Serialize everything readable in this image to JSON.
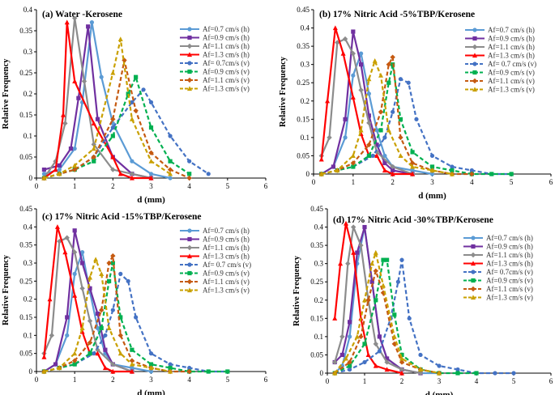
{
  "colors": {
    "s1": "#5b9bd5",
    "s2": "#7030a0",
    "s3": "#8c8c8c",
    "s4": "#ff0000",
    "s5": "#4472c4",
    "s6": "#00b050",
    "s7": "#c55a11",
    "s8": "#c9a000"
  },
  "chart_data": [
    {
      "type": "line",
      "title": "(a) Water -Kerosene",
      "xlabel": "d (mm)",
      "ylabel": "Relative Frequency",
      "xlim": [
        0,
        6
      ],
      "ylim": [
        0,
        0.4
      ],
      "xticks": [
        "0",
        "1",
        "2",
        "3",
        "4",
        "5",
        "6"
      ],
      "yticks": [
        "0",
        "0.05",
        "0.1",
        "0.15",
        "0.2",
        "0.25",
        "0.3",
        "0.35",
        "0.4"
      ],
      "legend": "top-right",
      "series": [
        {
          "name": "Af=0.7 cm/s (h)",
          "x": [
            0.2,
            0.6,
            1.0,
            1.2,
            1.45,
            1.7,
            2.0,
            2.5,
            3.0,
            3.5
          ],
          "y": [
            0.01,
            0.02,
            0.07,
            0.18,
            0.37,
            0.24,
            0.13,
            0.04,
            0.01,
            0.0
          ]
        },
        {
          "name": "Af=0.9 cm/s (h)",
          "x": [
            0.2,
            0.6,
            0.9,
            1.1,
            1.35,
            1.6,
            2.0,
            2.5,
            3.0
          ],
          "y": [
            0.02,
            0.03,
            0.07,
            0.19,
            0.36,
            0.14,
            0.05,
            0.01,
            0.0
          ]
        },
        {
          "name": "Af=1.1 cm/s (h)",
          "x": [
            0.2,
            0.5,
            0.75,
            1.0,
            1.25,
            1.5,
            2.0,
            2.5,
            3.0
          ],
          "y": [
            0.0,
            0.04,
            0.13,
            0.38,
            0.23,
            0.08,
            0.02,
            0.01,
            0.0
          ]
        },
        {
          "name": "Af=1.3 cm/s (h)",
          "x": [
            0.2,
            0.5,
            0.7,
            0.8,
            1.0,
            1.5,
            2.0,
            2.2,
            2.5,
            3.0
          ],
          "y": [
            0.0,
            0.02,
            0.15,
            0.37,
            0.23,
            0.13,
            0.05,
            0.01,
            0.0,
            0.0
          ]
        },
        {
          "name": "Af= 0.7cm/s (v)",
          "x": [
            0.2,
            0.6,
            1.0,
            1.5,
            2.0,
            2.5,
            2.8,
            3.0,
            3.5,
            4.0,
            4.5
          ],
          "y": [
            0.0,
            0.01,
            0.02,
            0.05,
            0.12,
            0.18,
            0.21,
            0.18,
            0.1,
            0.04,
            0.01
          ]
        },
        {
          "name": "Af=0.9 cm/s (v)",
          "x": [
            0.2,
            0.6,
            1.0,
            1.5,
            2.0,
            2.4,
            2.6,
            3.0,
            3.5,
            4.0
          ],
          "y": [
            0.0,
            0.01,
            0.02,
            0.04,
            0.1,
            0.2,
            0.24,
            0.12,
            0.04,
            0.01
          ]
        },
        {
          "name": "Af=1.1 cm/s (v)",
          "x": [
            0.2,
            0.6,
            1.0,
            1.5,
            2.0,
            2.3,
            2.6,
            3.0,
            3.5,
            4.0
          ],
          "y": [
            0.0,
            0.01,
            0.02,
            0.05,
            0.14,
            0.28,
            0.16,
            0.06,
            0.02,
            0.0
          ]
        },
        {
          "name": "Af=1.3 cm/s (v)",
          "x": [
            0.2,
            0.6,
            1.0,
            1.5,
            2.0,
            2.2,
            2.5,
            3.0,
            3.5
          ],
          "y": [
            0.0,
            0.01,
            0.03,
            0.07,
            0.25,
            0.33,
            0.14,
            0.04,
            0.01
          ]
        }
      ]
    },
    {
      "type": "line",
      "title": "(b) 17% Nitric Acid -5%TBP/Kerosene",
      "xlabel": "d (mm)",
      "ylabel": "Relative Frequency",
      "xlim": [
        0,
        6
      ],
      "ylim": [
        0,
        0.45
      ],
      "xticks": [
        "0",
        "1",
        "2",
        "3",
        "4",
        "5",
        "6"
      ],
      "yticks": [
        "0",
        "0.05",
        "0.1",
        "0.15",
        "0.2",
        "0.25",
        "0.3",
        "0.35",
        "0.4",
        "0.45"
      ],
      "legend": "top-right",
      "series": [
        {
          "name": "Af=0.7 cm/s (h)",
          "x": [
            0.2,
            0.5,
            0.8,
            1.0,
            1.2,
            1.4,
            1.6,
            1.8,
            2.0,
            2.5,
            3.0
          ],
          "y": [
            0.0,
            0.02,
            0.1,
            0.27,
            0.33,
            0.22,
            0.12,
            0.05,
            0.02,
            0.01,
            0.0
          ]
        },
        {
          "name": "Af=0.9 cm/s (h)",
          "x": [
            0.2,
            0.5,
            0.8,
            1.0,
            1.2,
            1.4,
            1.6,
            1.8,
            2.0,
            2.5
          ],
          "y": [
            0.0,
            0.02,
            0.15,
            0.39,
            0.3,
            0.16,
            0.08,
            0.03,
            0.01,
            0.0
          ]
        },
        {
          "name": "Af=1.1 cm/s (h)",
          "x": [
            0.2,
            0.4,
            0.6,
            0.8,
            1.0,
            1.2,
            1.4,
            1.6,
            2.0,
            2.5
          ],
          "y": [
            0.05,
            0.1,
            0.36,
            0.37,
            0.33,
            0.23,
            0.14,
            0.06,
            0.02,
            0.0
          ]
        },
        {
          "name": "Af=1.3 cm/s (h)",
          "x": [
            0.2,
            0.35,
            0.55,
            0.75,
            1.0,
            1.2,
            1.4,
            1.6,
            1.8,
            2.0,
            2.5
          ],
          "y": [
            0.04,
            0.2,
            0.4,
            0.33,
            0.21,
            0.11,
            0.05,
            0.05,
            0.01,
            0.0,
            0.0
          ]
        },
        {
          "name": "Af= 0.7 cm/s (v)",
          "x": [
            0.2,
            0.6,
            1.0,
            1.5,
            1.8,
            2.0,
            2.2,
            2.4,
            2.6,
            3.0,
            3.5,
            4.0,
            4.5,
            5.0
          ],
          "y": [
            0.0,
            0.01,
            0.02,
            0.05,
            0.1,
            0.17,
            0.26,
            0.25,
            0.15,
            0.05,
            0.02,
            0.01,
            0.0,
            0.0
          ]
        },
        {
          "name": "Af=0.9 cm/s (v)",
          "x": [
            0.2,
            0.6,
            1.0,
            1.4,
            1.7,
            1.9,
            2.0,
            2.2,
            2.5,
            3.0,
            3.5,
            4.0,
            4.5,
            5.0
          ],
          "y": [
            0.0,
            0.01,
            0.02,
            0.05,
            0.12,
            0.25,
            0.3,
            0.15,
            0.06,
            0.02,
            0.01,
            0.0,
            0.0,
            0.0
          ]
        },
        {
          "name": "Af=1.1 cm/s (v)",
          "x": [
            0.2,
            0.6,
            1.0,
            1.4,
            1.7,
            1.9,
            2.0,
            2.2,
            2.5,
            3.0,
            3.5,
            4.0
          ],
          "y": [
            0.0,
            0.01,
            0.03,
            0.08,
            0.17,
            0.3,
            0.32,
            0.1,
            0.03,
            0.01,
            0.0,
            0.0
          ]
        },
        {
          "name": "Af=1.3 cm/s (v)",
          "x": [
            0.2,
            0.6,
            1.0,
            1.2,
            1.4,
            1.55,
            1.7,
            1.9,
            2.2,
            2.5,
            3.0,
            3.5
          ],
          "y": [
            0.0,
            0.01,
            0.05,
            0.12,
            0.26,
            0.31,
            0.27,
            0.12,
            0.05,
            0.02,
            0.01,
            0.0
          ]
        }
      ]
    },
    {
      "type": "line",
      "title": "(c) 17% Nitric Acid -15%TBP/Kerosene",
      "xlabel": "d (mm)",
      "ylabel": "Relative Frequency",
      "xlim": [
        0,
        6
      ],
      "ylim": [
        0,
        0.45
      ],
      "xticks": [
        "0",
        "1",
        "2",
        "3",
        "4",
        "5",
        "6"
      ],
      "yticks": [
        "0",
        "0.05",
        "0.1",
        "0.15",
        "0.2",
        "0.25",
        "0.3",
        "0.35",
        "0.4",
        "0.45"
      ],
      "legend": "top-right",
      "series": [
        {
          "name": "Af=0.7 cm/s (h)",
          "x": [
            0.2,
            0.5,
            0.8,
            1.0,
            1.2,
            1.4,
            1.6,
            1.8,
            2.0,
            2.5,
            3.0
          ],
          "y": [
            0.0,
            0.02,
            0.1,
            0.27,
            0.33,
            0.22,
            0.12,
            0.05,
            0.02,
            0.01,
            0.0
          ]
        },
        {
          "name": "Af=0.9 cm/s (h)",
          "x": [
            0.2,
            0.5,
            0.8,
            1.0,
            1.2,
            1.4,
            1.6,
            1.8,
            2.0,
            2.5
          ],
          "y": [
            0.0,
            0.02,
            0.15,
            0.39,
            0.3,
            0.23,
            0.16,
            0.06,
            0.02,
            0.0
          ]
        },
        {
          "name": "Af=1.1 cm/s (h)",
          "x": [
            0.2,
            0.4,
            0.6,
            0.8,
            1.0,
            1.2,
            1.4,
            1.6,
            2.0,
            2.5
          ],
          "y": [
            0.05,
            0.1,
            0.36,
            0.37,
            0.33,
            0.23,
            0.14,
            0.06,
            0.02,
            0.0
          ]
        },
        {
          "name": "Af=1.3 cm/s (h)",
          "x": [
            0.2,
            0.35,
            0.55,
            0.75,
            1.0,
            1.2,
            1.4,
            1.6,
            1.8,
            2.0,
            2.5
          ],
          "y": [
            0.04,
            0.2,
            0.4,
            0.33,
            0.21,
            0.11,
            0.05,
            0.05,
            0.01,
            0.0,
            0.0
          ]
        },
        {
          "name": "Af= 0.7 cm/s (v)",
          "x": [
            0.2,
            0.6,
            1.0,
            1.5,
            1.8,
            2.0,
            2.2,
            2.4,
            2.6,
            3.0,
            3.5,
            4.0,
            4.5,
            5.0
          ],
          "y": [
            0.0,
            0.01,
            0.02,
            0.05,
            0.1,
            0.17,
            0.27,
            0.25,
            0.15,
            0.05,
            0.02,
            0.01,
            0.0,
            0.0
          ]
        },
        {
          "name": "Af=0.9 cm/s (v)",
          "x": [
            0.2,
            0.6,
            1.0,
            1.4,
            1.7,
            1.9,
            2.0,
            2.2,
            2.5,
            3.0,
            3.5,
            4.0,
            4.5,
            5.0
          ],
          "y": [
            0.0,
            0.01,
            0.02,
            0.05,
            0.12,
            0.25,
            0.3,
            0.15,
            0.06,
            0.02,
            0.01,
            0.0,
            0.0,
            0.0
          ]
        },
        {
          "name": "Af=1.1 cm/s (v)",
          "x": [
            0.2,
            0.6,
            1.0,
            1.4,
            1.7,
            1.9,
            2.0,
            2.2,
            2.5,
            3.0,
            3.5,
            4.0
          ],
          "y": [
            0.0,
            0.01,
            0.03,
            0.08,
            0.17,
            0.3,
            0.32,
            0.1,
            0.03,
            0.01,
            0.0,
            0.0
          ]
        },
        {
          "name": "Af=1.3 cm/s (v)",
          "x": [
            0.2,
            0.6,
            1.0,
            1.2,
            1.4,
            1.55,
            1.7,
            1.9,
            2.2,
            2.5,
            3.0,
            3.5
          ],
          "y": [
            0.0,
            0.01,
            0.05,
            0.12,
            0.26,
            0.31,
            0.27,
            0.12,
            0.05,
            0.02,
            0.01,
            0.0
          ]
        }
      ]
    },
    {
      "type": "line",
      "title": "(d) 17% Nitric Acid -30%TBP/Kerosene",
      "xlabel": "d (mm)",
      "ylabel": "Relative Frequency",
      "xlim": [
        0,
        6
      ],
      "ylim": [
        0,
        0.45
      ],
      "xticks": [
        "0",
        "1",
        "2",
        "3",
        "4",
        "5",
        "6"
      ],
      "yticks": [
        "0",
        "0.05",
        "0.1",
        "0.15",
        "0.2",
        "0.25",
        "0.3",
        "0.35",
        "0.4",
        "0.45"
      ],
      "legend": "top-right",
      "series": [
        {
          "name": "Af=0.7 cm/s (h)",
          "x": [
            0.2,
            0.4,
            0.6,
            0.8,
            1.0,
            1.2,
            1.4,
            1.6,
            2.0,
            2.5,
            3.0
          ],
          "y": [
            0.0,
            0.02,
            0.1,
            0.3,
            0.4,
            0.25,
            0.1,
            0.04,
            0.01,
            0.0,
            0.0
          ]
        },
        {
          "name": "Af=0.9 cm/s (h)",
          "x": [
            0.2,
            0.4,
            0.6,
            0.8,
            1.0,
            1.2,
            1.4,
            1.6,
            2.0,
            2.5
          ],
          "y": [
            0.03,
            0.05,
            0.14,
            0.33,
            0.4,
            0.25,
            0.1,
            0.04,
            0.01,
            0.0
          ]
        },
        {
          "name": "Af=1.1 cm/s (h)",
          "x": [
            0.2,
            0.4,
            0.55,
            0.7,
            0.9,
            1.1,
            1.3,
            1.6,
            2.0,
            2.5
          ],
          "y": [
            0.03,
            0.1,
            0.3,
            0.4,
            0.35,
            0.2,
            0.08,
            0.03,
            0.01,
            0.0
          ]
        },
        {
          "name": "Af=1.3 cm/s (h)",
          "x": [
            0.2,
            0.35,
            0.5,
            0.7,
            0.9,
            1.1,
            1.3,
            1.6,
            2.0
          ],
          "y": [
            0.15,
            0.3,
            0.41,
            0.33,
            0.15,
            0.05,
            0.02,
            0.01,
            0.0
          ]
        },
        {
          "name": "Af= 0.7cm/s (v)",
          "x": [
            0.2,
            0.6,
            1.0,
            1.4,
            1.7,
            1.9,
            2.0,
            2.2,
            2.5,
            3.0,
            3.5,
            4.0,
            4.5,
            5.0
          ],
          "y": [
            0.0,
            0.01,
            0.03,
            0.06,
            0.15,
            0.25,
            0.31,
            0.15,
            0.05,
            0.02,
            0.01,
            0.0,
            0.0,
            0.0
          ]
        },
        {
          "name": "Af=0.9 cm/s (v)",
          "x": [
            0.2,
            0.6,
            1.0,
            1.3,
            1.5,
            1.6,
            1.8,
            2.0,
            2.5,
            3.0,
            3.5,
            4.0
          ],
          "y": [
            0.0,
            0.02,
            0.08,
            0.2,
            0.31,
            0.31,
            0.16,
            0.05,
            0.01,
            0.0,
            0.0,
            0.0
          ]
        },
        {
          "name": "Af=1.1 cm/s (v)",
          "x": [
            0.2,
            0.6,
            0.9,
            1.1,
            1.3,
            1.5,
            1.8,
            2.0,
            2.5,
            3.0
          ],
          "y": [
            0.0,
            0.03,
            0.1,
            0.2,
            0.28,
            0.22,
            0.08,
            0.03,
            0.01,
            0.0
          ]
        },
        {
          "name": "Af=1.3 cm/s (v)",
          "x": [
            0.2,
            0.5,
            0.8,
            1.0,
            1.2,
            1.3,
            1.5,
            1.8,
            2.0,
            2.5,
            3.0
          ],
          "y": [
            0.0,
            0.04,
            0.1,
            0.2,
            0.3,
            0.33,
            0.24,
            0.1,
            0.04,
            0.01,
            0.0
          ]
        }
      ]
    }
  ]
}
